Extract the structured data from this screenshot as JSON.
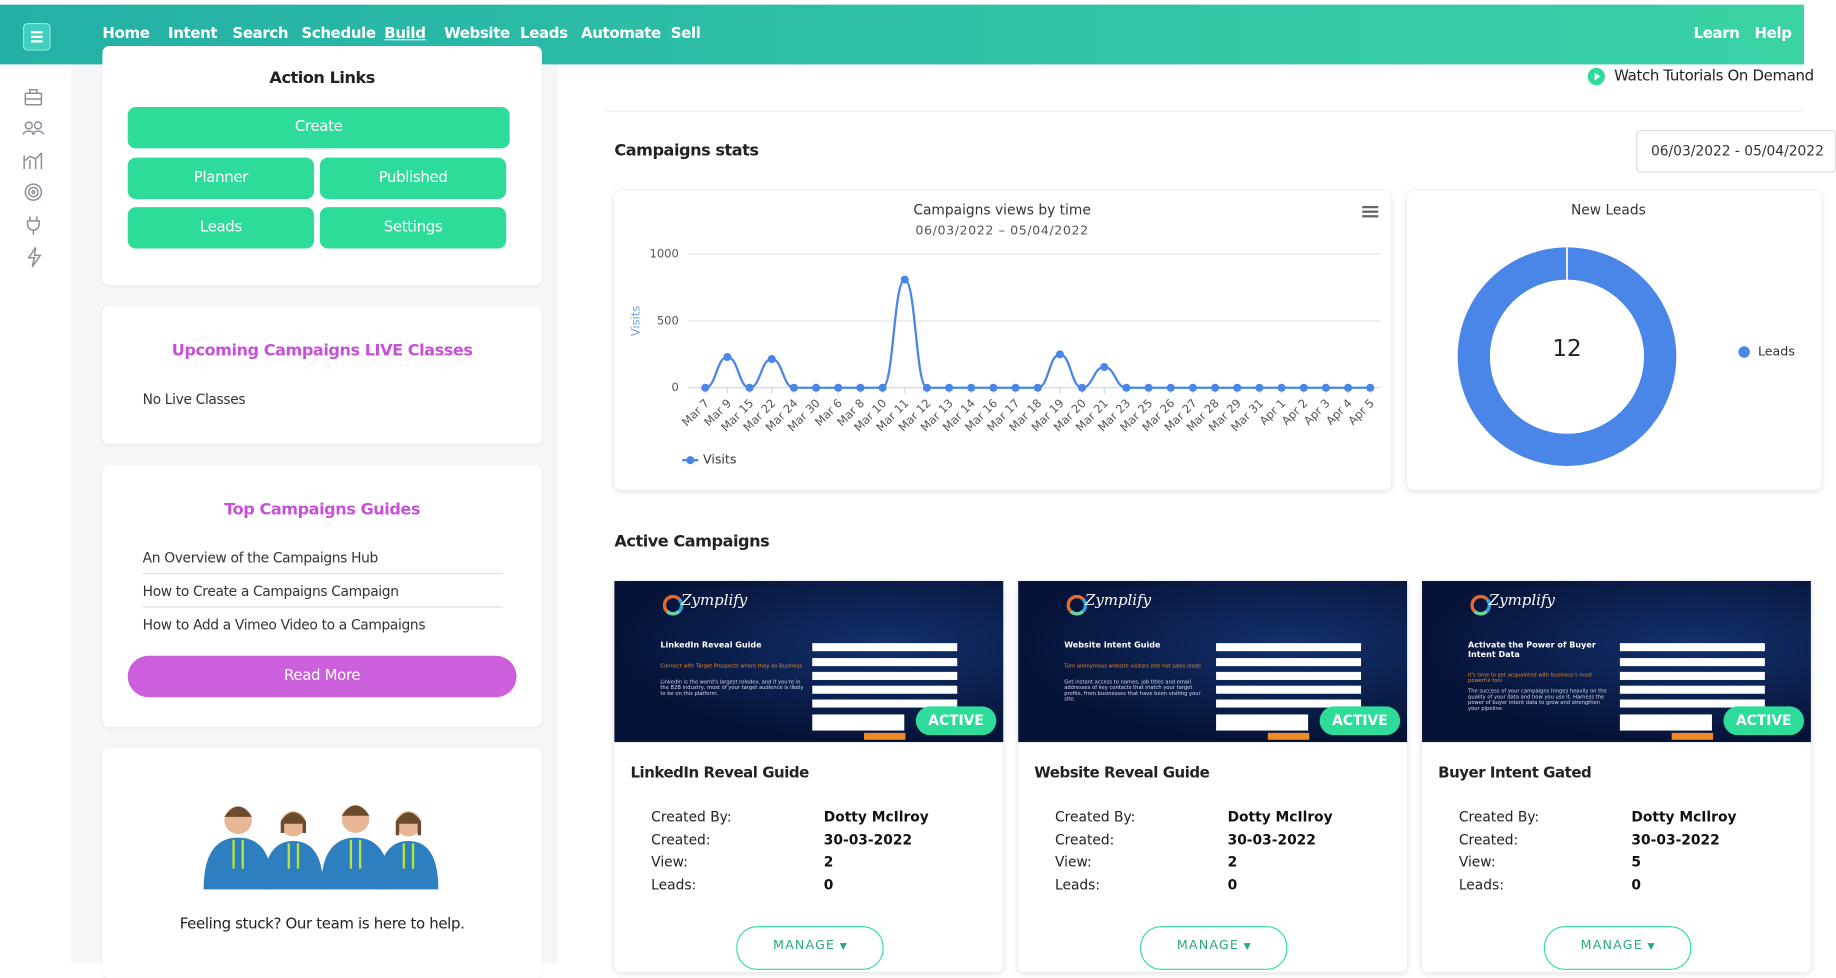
{
  "nav": {
    "items": [
      "Home",
      "Intent",
      "Search",
      "Schedule",
      "Build",
      "Website",
      "Leads",
      "Automate",
      "Sell"
    ],
    "right": [
      "Learn",
      "Help"
    ]
  },
  "action_links": {
    "title": "Action Links",
    "buttons": [
      "Create",
      "Planner",
      "Published",
      "Leads",
      "Settings"
    ]
  },
  "live_classes": {
    "title": "Upcoming Campaigns LIVE Classes",
    "text": "No Live Classes"
  },
  "guides": {
    "title": "Top Campaigns Guides",
    "items": [
      "An Overview of the Campaigns Hub",
      "How to Create a Campaigns Campaign",
      "How to Add a Vimeo Video to a Campaigns"
    ],
    "button": "Read More"
  },
  "help": {
    "text": "Feeling stuck? Our team is here to help."
  },
  "watch": "Watch Tutorials On Demand",
  "stats": {
    "title": "Campaigns stats",
    "date_range": "06/03/2022 - 05/04/2022"
  },
  "chart_data": [
    {
      "type": "line",
      "title": "Campaigns views by time",
      "subtitle": "06/03/2022 – 05/04/2022",
      "y_label": "Visits",
      "categories": [
        "Mar 7",
        "Mar 9",
        "Mar 15",
        "Mar 22",
        "Mar 24",
        "Mar 30",
        "Mar 6",
        "Mar 8",
        "Mar 10",
        "Mar 11",
        "Mar 12",
        "Mar 13",
        "Mar 14",
        "Mar 16",
        "Mar 17",
        "Mar 18",
        "Mar 19",
        "Mar 20",
        "Mar 21",
        "Mar 23",
        "Mar 25",
        "Mar 26",
        "Mar 27",
        "Mar 28",
        "Mar 29",
        "Mar 31",
        "Apr 1",
        "Apr 2",
        "Apr 3",
        "Apr 4",
        "Apr 5"
      ],
      "series": [
        {
          "name": "Visits",
          "color": "#4a86e8",
          "values": [
            0,
            230,
            0,
            215,
            0,
            0,
            0,
            0,
            0,
            810,
            0,
            0,
            0,
            0,
            0,
            0,
            250,
            0,
            155,
            0,
            0,
            0,
            0,
            0,
            0,
            0,
            0,
            0,
            0,
            0,
            0
          ]
        }
      ],
      "ylim": [
        0,
        1000
      ],
      "yticks": [
        0,
        500,
        1000
      ],
      "grid": true,
      "legend": "bottom-left"
    },
    {
      "type": "pie",
      "title": "New Leads",
      "categories": [
        "Leads"
      ],
      "values": [
        12
      ],
      "colors": [
        "#4a86e8"
      ],
      "donut": true,
      "legend": "right"
    }
  ],
  "active_campaigns": {
    "title": "Active Campaigns",
    "brand": "Zymplify",
    "badge": "ACTIVE",
    "button": "MANAGE",
    "fields": [
      "Created By:",
      "Created:",
      "View:",
      "Leads:"
    ],
    "items": [
      {
        "thumb_heading": "LinkedIn Reveal Guide",
        "thumb_subheading": "Connect with Target Prospects where they do Business",
        "thumb_body": "LinkedIn is the world's largest rolodex, and if you're in the B2B industry, most of your target audience is likely to be on this platform.",
        "title": "LinkedIn Reveal Guide",
        "created_by": "Dotty McIlroy",
        "created": "30-03-2022",
        "views": 2,
        "leads": 0
      },
      {
        "thumb_heading": "Website Intent Guide",
        "thumb_subheading": "Turn anonymous website visitors into hot sales leads",
        "thumb_body": "Get instant access to names, job titles and email addresses of key contacts that match your target profile, from businesses that have been visiting your site.",
        "title": "Website Reveal Guide",
        "created_by": "Dotty McIlroy",
        "created": "30-03-2022",
        "views": 2,
        "leads": 0
      },
      {
        "thumb_heading": "Activate the Power of Buyer Intent Data",
        "thumb_subheading": "It's time to get acquainted with business's most powerful tool",
        "thumb_body": "The success of your campaigns hinges heavily on the quality of your data and how you use it. Harness the power of buyer intent data to grow and strengthen your pipeline.",
        "title": "Buyer Intent Gated",
        "created_by": "Dotty McIlroy",
        "created": "30-03-2022",
        "views": 5,
        "leads": 0
      }
    ]
  }
}
